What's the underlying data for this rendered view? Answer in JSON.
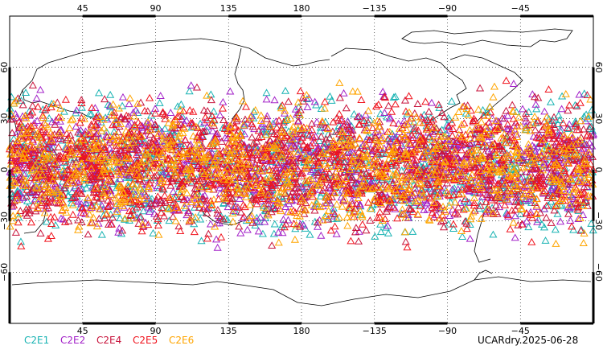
{
  "map": {
    "projection": "cylindrical equidistant",
    "lon_range": [
      0,
      360
    ],
    "lat_range": [
      -90,
      90
    ],
    "grid_style": "dotted",
    "coastline_color": "#000000",
    "marker_shape": "open triangle",
    "top_tick_labels": [
      "45",
      "90",
      "135",
      "180",
      "−135",
      "−90",
      "−45"
    ],
    "bottom_tick_labels": [
      "45",
      "90",
      "135",
      "180",
      "−135",
      "−90",
      "−45"
    ],
    "lat_tick_labels": [
      "60",
      "30",
      "0",
      "−30",
      "−60"
    ],
    "lat_tick_values": [
      60,
      30,
      0,
      -30,
      -60
    ],
    "lon_tick_values": [
      45,
      90,
      135,
      180,
      225,
      270,
      315
    ],
    "occultation_band_lat": [
      -50,
      55
    ],
    "occultations_per_mission_shown": 1000
  },
  "legend": {
    "items": [
      {
        "label": "C2E1",
        "color": "#19b3b3"
      },
      {
        "label": "C2E2",
        "color": "#a322c8"
      },
      {
        "label": "C2E4",
        "color": "#c8143c"
      },
      {
        "label": "C2E5",
        "color": "#f0141e"
      },
      {
        "label": "C2E6",
        "color": "#ffa500"
      }
    ]
  },
  "footer": {
    "stamp": "UCARdry.2025-06-28"
  }
}
